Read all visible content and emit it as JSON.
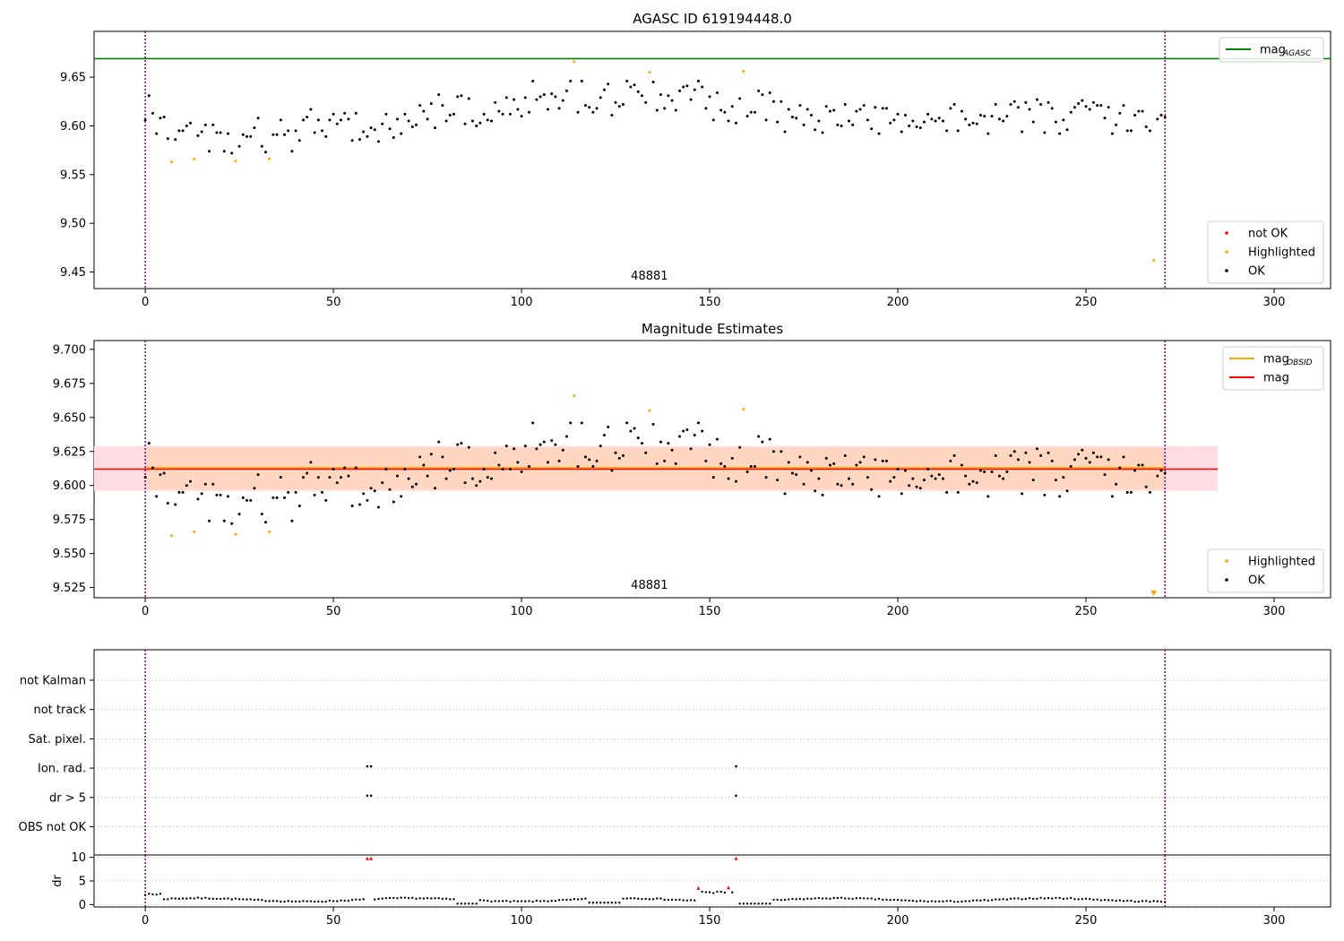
{
  "chart_data": [
    {
      "type": "scatter",
      "title": "AGASC ID 619194448.0",
      "annotation": "48881",
      "xlim": [
        -13.6,
        315
      ],
      "ylim": [
        9.433,
        9.697
      ],
      "xticks": [
        0,
        50,
        100,
        150,
        200,
        250,
        300
      ],
      "yticks": [
        9.45,
        9.5,
        9.55,
        9.6,
        9.65
      ],
      "ytick_labels": [
        "9.45",
        "9.50",
        "9.55",
        "9.60",
        "9.65"
      ],
      "vlines": [
        0,
        271
      ],
      "hline": {
        "name": "mag",
        "name_sub": "AGASC",
        "y": 9.669,
        "color": "#008000"
      },
      "legend_top": [
        {
          "label": "mag",
          "sub": "AGASC",
          "color": "#008000",
          "kind": "line"
        }
      ],
      "legend_bottom": [
        {
          "label": "not OK",
          "color": "#ff0000",
          "kind": "dot"
        },
        {
          "label": "Highlighted",
          "color": "#ffa500",
          "kind": "dot"
        },
        {
          "label": "OK",
          "color": "#000000",
          "kind": "dot"
        }
      ],
      "highlighted": [
        [
          7,
          9.563
        ],
        [
          13,
          9.566
        ],
        [
          24,
          9.564
        ],
        [
          33,
          9.566
        ],
        [
          114,
          9.666
        ],
        [
          134,
          9.655
        ],
        [
          159,
          9.656
        ],
        [
          268,
          9.462
        ]
      ],
      "not_ok": []
    },
    {
      "type": "scatter",
      "title": "Magnitude Estimates",
      "annotation": "48881",
      "xlim": [
        -13.6,
        315
      ],
      "ylim": [
        9.5175,
        9.7065
      ],
      "xticks": [
        0,
        50,
        100,
        150,
        200,
        250,
        300
      ],
      "yticks": [
        9.525,
        9.55,
        9.575,
        9.6,
        9.625,
        9.65,
        9.675,
        9.7
      ],
      "ytick_labels": [
        "9.525",
        "9.550",
        "9.575",
        "9.600",
        "9.625",
        "9.650",
        "9.675",
        "9.700"
      ],
      "vlines": [
        0,
        271
      ],
      "mag_line": 9.612,
      "mag_obsid_line": 9.613,
      "band_outer": [
        9.596,
        9.629
      ],
      "band_inner": [
        9.597,
        9.628
      ],
      "band_xrange": [
        -13.6,
        285
      ],
      "legend_top": [
        {
          "label": "mag",
          "sub": "OBSID",
          "color": "#ffa500",
          "kind": "line"
        },
        {
          "label": "mag",
          "sub": "",
          "color": "#ff0000",
          "kind": "line"
        }
      ],
      "legend_bottom": [
        {
          "label": "Highlighted",
          "color": "#ffa500",
          "kind": "dot"
        },
        {
          "label": "OK",
          "color": "#000000",
          "kind": "dot"
        }
      ],
      "highlighted": [
        [
          7,
          9.563
        ],
        [
          13,
          9.566
        ],
        [
          24,
          9.564
        ],
        [
          33,
          9.566
        ],
        [
          114,
          9.666
        ],
        [
          134,
          9.655
        ],
        [
          159,
          9.656
        ]
      ],
      "clipped_marker": {
        "x": 268,
        "color": "#ffa500"
      }
    },
    {
      "type": "scatter",
      "title": "",
      "xlim": [
        -13.6,
        315
      ],
      "categories": [
        "not Kalman",
        "not track",
        "Sat. pixel.",
        "Ion. rad.",
        "dr > 5",
        "OBS not OK"
      ],
      "vlines": [
        0,
        271
      ],
      "flags": {
        "Ion. rad.": [
          59,
          60,
          157
        ],
        "dr > 5": [
          59,
          60,
          157
        ]
      }
    },
    {
      "type": "scatter",
      "title": "",
      "ylabel": "dr",
      "xlim": [
        -13.6,
        315
      ],
      "ylim": [
        -0.5,
        10.5
      ],
      "xticks": [
        0,
        50,
        100,
        150,
        200,
        250,
        300
      ],
      "yticks": [
        0,
        5,
        10
      ],
      "vlines": [
        0,
        271
      ],
      "red_points": [
        [
          59,
          9.8
        ],
        [
          60,
          9.8
        ],
        [
          147,
          3.5
        ],
        [
          155,
          3.6
        ],
        [
          157,
          9.8
        ]
      ],
      "red_marker_shape": "triangle"
    }
  ],
  "colors": {
    "ok": "#000000",
    "highlighted": "#ffa500",
    "not_ok": "#ff0000",
    "vline": "#800080",
    "agasc": "#008000",
    "band_outer": "#ffdde2",
    "band_inner": "#ffd6c0"
  }
}
